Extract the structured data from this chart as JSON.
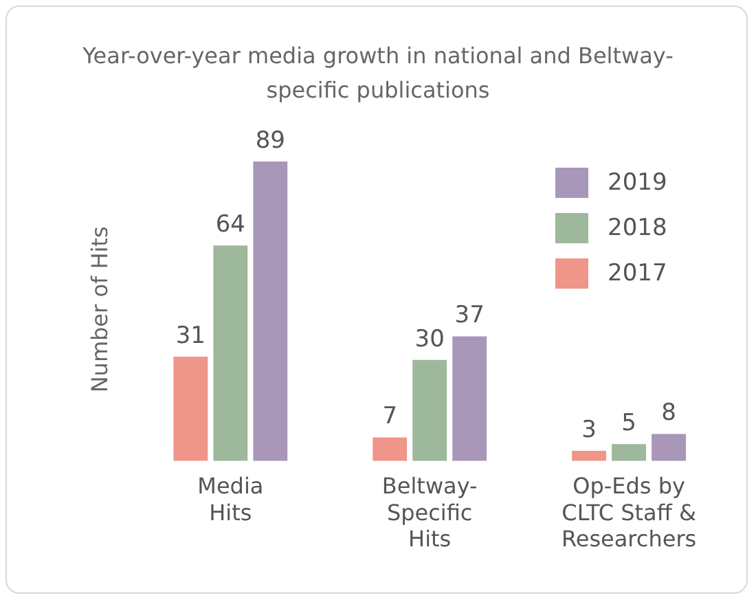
{
  "chart_data": {
    "type": "bar",
    "title": "Year-over-year media growth in national and Beltway-specific publications",
    "ylabel": "Number of Hits",
    "categories": [
      "Media\nHits",
      "Beltway-\nSpecific\nHits",
      "Op-Eds by\nCLTC Staff &\nResearchers"
    ],
    "series": [
      {
        "name": "2017",
        "color": "#f0958a",
        "values": [
          31,
          7,
          3
        ]
      },
      {
        "name": "2018",
        "color": "#9db89a",
        "values": [
          64,
          30,
          5
        ]
      },
      {
        "name": "2019",
        "color": "#a897b8",
        "values": [
          89,
          37,
          8
        ]
      }
    ],
    "data_labels": true,
    "legend": "right",
    "grid": false
  }
}
